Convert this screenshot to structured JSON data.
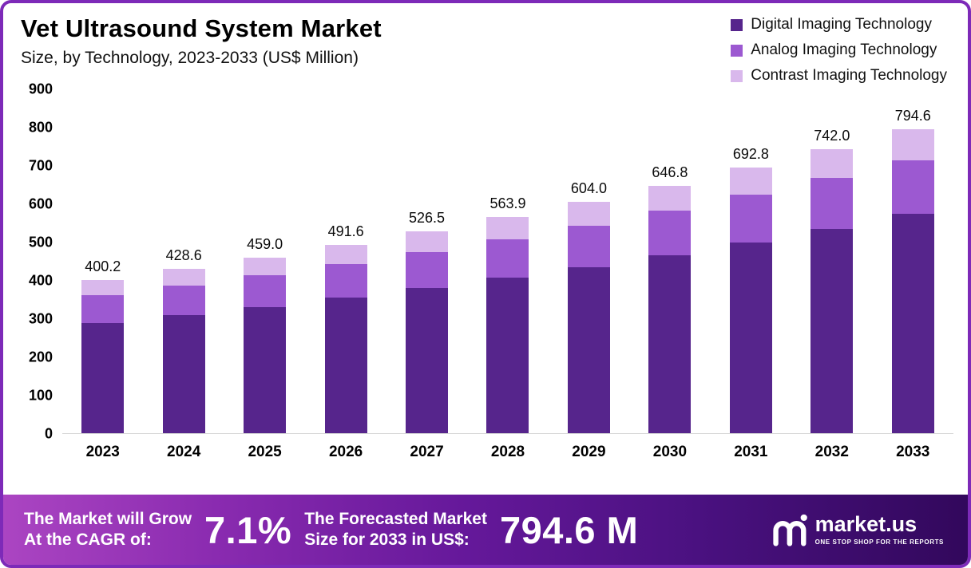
{
  "header": {
    "title": "Vet Ultrasound System Market",
    "subtitle": "Size, by Technology, 2023-2033 (US$ Million)"
  },
  "legend": [
    {
      "label": "Digital Imaging Technology",
      "color": "#56258c"
    },
    {
      "label": "Analog Imaging Technology",
      "color": "#9c59d1"
    },
    {
      "label": "Contrast Imaging Technology",
      "color": "#d9b8ec"
    }
  ],
  "chart_data": {
    "type": "bar",
    "stacked": true,
    "title": "Vet Ultrasound System Market Size, by Technology, 2023-2033 (US$ Million)",
    "categories": [
      "2023",
      "2024",
      "2025",
      "2026",
      "2027",
      "2028",
      "2029",
      "2030",
      "2031",
      "2032",
      "2033"
    ],
    "totals": [
      400.2,
      428.6,
      459.0,
      491.6,
      526.5,
      563.9,
      604.0,
      646.8,
      692.8,
      742.0,
      794.6
    ],
    "series": [
      {
        "name": "Digital Imaging Technology",
        "color": "#56258c",
        "values": [
          288.0,
          308.0,
          330.0,
          353.5,
          378.5,
          405.5,
          434.0,
          465.0,
          498.0,
          534.0,
          572.0
        ]
      },
      {
        "name": "Analog Imaging Technology",
        "color": "#9c59d1",
        "values": [
          72.0,
          77.0,
          83.0,
          88.5,
          94.5,
          101.4,
          108.5,
          116.0,
          124.0,
          132.5,
          141.0
        ]
      },
      {
        "name": "Contrast Imaging Technology",
        "color": "#d9b8ec",
        "values": [
          40.2,
          43.6,
          46.0,
          49.6,
          53.5,
          57.0,
          61.5,
          65.8,
          70.8,
          75.5,
          81.6
        ]
      }
    ],
    "xlabel": "",
    "ylabel": "",
    "ylim": [
      0,
      900
    ],
    "yticks": [
      900,
      800,
      700,
      600,
      500,
      400,
      300,
      200,
      100,
      0
    ],
    "grid": false,
    "legend_position": "top-right"
  },
  "footer": {
    "cagr_label_lines": [
      "The Market will Grow",
      "At the CAGR of:"
    ],
    "cagr_value": "7.1%",
    "forecast_label_lines": [
      "The Forecasted Market",
      "Size for 2033 in US$:"
    ],
    "forecast_value": "794.6 M",
    "brand": "market.us",
    "brand_tagline": "ONE STOP SHOP FOR THE REPORTS"
  }
}
